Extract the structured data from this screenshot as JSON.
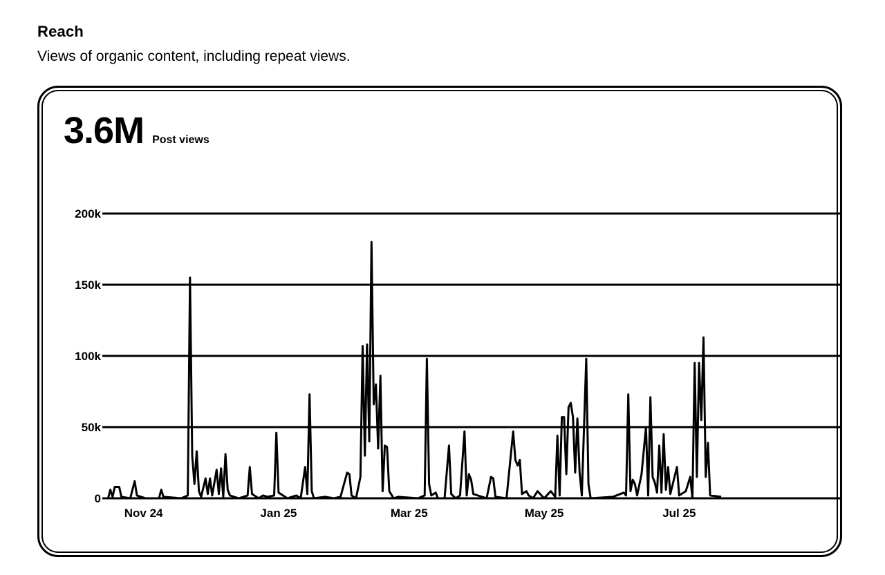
{
  "section": {
    "title": "Reach",
    "subtitle": "Views of organic content, including repeat views."
  },
  "metric": {
    "value": "3.6M",
    "label": "Post views"
  },
  "chart_data": {
    "type": "line",
    "title": "",
    "xlabel": "",
    "ylabel": "",
    "ylim": [
      0,
      200000
    ],
    "xlim": [
      "2024-10-14",
      "2025-09-12"
    ],
    "grid": true,
    "y_ticks": [
      {
        "value": 0,
        "label": "0"
      },
      {
        "value": 50000,
        "label": "50k"
      },
      {
        "value": 100000,
        "label": "100k"
      },
      {
        "value": 150000,
        "label": "150k"
      },
      {
        "value": 200000,
        "label": "200k"
      }
    ],
    "x_ticks": [
      {
        "date": "2024-11-01",
        "label": "Nov 24"
      },
      {
        "date": "2025-01-01",
        "label": "Jan 25"
      },
      {
        "date": "2025-03-01",
        "label": "Mar 25"
      },
      {
        "date": "2025-05-01",
        "label": "May 25"
      },
      {
        "date": "2025-07-01",
        "label": "Jul 25"
      }
    ],
    "series": [
      {
        "name": "",
        "points": [
          [
            "2024-10-16",
            0
          ],
          [
            "2024-10-17",
            6000
          ],
          [
            "2024-10-18",
            1000
          ],
          [
            "2024-10-19",
            8000
          ],
          [
            "2024-10-21",
            8000
          ],
          [
            "2024-10-22",
            1000
          ],
          [
            "2024-10-26",
            0
          ],
          [
            "2024-10-28",
            12000
          ],
          [
            "2024-10-29",
            2000
          ],
          [
            "2024-11-02",
            0
          ],
          [
            "2024-11-08",
            0
          ],
          [
            "2024-11-09",
            6000
          ],
          [
            "2024-11-10",
            1000
          ],
          [
            "2024-11-18",
            0
          ],
          [
            "2024-11-21",
            2000
          ],
          [
            "2024-11-22",
            155000
          ],
          [
            "2024-11-23",
            30000
          ],
          [
            "2024-11-24",
            10000
          ],
          [
            "2024-11-25",
            33000
          ],
          [
            "2024-11-26",
            5000
          ],
          [
            "2024-11-27",
            1000
          ],
          [
            "2024-11-29",
            14000
          ],
          [
            "2024-11-30",
            3000
          ],
          [
            "2024-12-01",
            14000
          ],
          [
            "2024-12-02",
            2000
          ],
          [
            "2024-12-04",
            20000
          ],
          [
            "2024-12-05",
            3000
          ],
          [
            "2024-12-06",
            21000
          ],
          [
            "2024-12-07",
            1000
          ],
          [
            "2024-12-08",
            31000
          ],
          [
            "2024-12-09",
            6000
          ],
          [
            "2024-12-10",
            2000
          ],
          [
            "2024-12-14",
            0
          ],
          [
            "2024-12-18",
            2000
          ],
          [
            "2024-12-19",
            22000
          ],
          [
            "2024-12-20",
            3000
          ],
          [
            "2024-12-23",
            0
          ],
          [
            "2024-12-25",
            2000
          ],
          [
            "2024-12-27",
            1000
          ],
          [
            "2024-12-30",
            2000
          ],
          [
            "2024-12-31",
            46000
          ],
          [
            "2025-01-01",
            4000
          ],
          [
            "2025-01-05",
            0
          ],
          [
            "2025-01-09",
            2000
          ],
          [
            "2025-01-11",
            0
          ],
          [
            "2025-01-13",
            22000
          ],
          [
            "2025-01-14",
            3000
          ],
          [
            "2025-01-15",
            73000
          ],
          [
            "2025-01-16",
            5000
          ],
          [
            "2025-01-17",
            0
          ],
          [
            "2025-01-22",
            1000
          ],
          [
            "2025-01-26",
            0
          ],
          [
            "2025-01-29",
            1000
          ],
          [
            "2025-02-01",
            18000
          ],
          [
            "2025-02-02",
            17000
          ],
          [
            "2025-02-03",
            2000
          ],
          [
            "2025-02-05",
            0
          ],
          [
            "2025-02-07",
            15000
          ],
          [
            "2025-02-08",
            107000
          ],
          [
            "2025-02-09",
            30000
          ],
          [
            "2025-02-10",
            108000
          ],
          [
            "2025-02-11",
            40000
          ],
          [
            "2025-02-12",
            180000
          ],
          [
            "2025-02-13",
            66000
          ],
          [
            "2025-02-14",
            80000
          ],
          [
            "2025-02-15",
            35000
          ],
          [
            "2025-02-16",
            86000
          ],
          [
            "2025-02-17",
            5000
          ],
          [
            "2025-02-18",
            37000
          ],
          [
            "2025-02-19",
            36000
          ],
          [
            "2025-02-20",
            5000
          ],
          [
            "2025-02-22",
            0
          ],
          [
            "2025-02-24",
            1000
          ],
          [
            "2025-03-05",
            0
          ],
          [
            "2025-03-08",
            2000
          ],
          [
            "2025-03-09",
            98000
          ],
          [
            "2025-03-10",
            10000
          ],
          [
            "2025-03-11",
            2000
          ],
          [
            "2025-03-13",
            4000
          ],
          [
            "2025-03-14",
            0
          ],
          [
            "2025-03-17",
            0
          ],
          [
            "2025-03-19",
            37000
          ],
          [
            "2025-03-20",
            3000
          ],
          [
            "2025-03-22",
            0
          ],
          [
            "2025-03-24",
            2000
          ],
          [
            "2025-03-26",
            47000
          ],
          [
            "2025-03-27",
            2000
          ],
          [
            "2025-03-28",
            17000
          ],
          [
            "2025-03-29",
            13000
          ],
          [
            "2025-03-30",
            3000
          ],
          [
            "2025-04-05",
            0
          ],
          [
            "2025-04-07",
            15000
          ],
          [
            "2025-04-08",
            14000
          ],
          [
            "2025-04-09",
            1000
          ],
          [
            "2025-04-14",
            0
          ],
          [
            "2025-04-17",
            47000
          ],
          [
            "2025-04-18",
            27000
          ],
          [
            "2025-04-19",
            23000
          ],
          [
            "2025-04-20",
            27000
          ],
          [
            "2025-04-21",
            3000
          ],
          [
            "2025-04-23",
            5000
          ],
          [
            "2025-04-24",
            2000
          ],
          [
            "2025-04-26",
            0
          ],
          [
            "2025-04-28",
            5000
          ],
          [
            "2025-05-01",
            0
          ],
          [
            "2025-05-04",
            5000
          ],
          [
            "2025-05-06",
            1000
          ],
          [
            "2025-05-07",
            44000
          ],
          [
            "2025-05-08",
            2000
          ],
          [
            "2025-05-09",
            57000
          ],
          [
            "2025-05-10",
            57000
          ],
          [
            "2025-05-11",
            17000
          ],
          [
            "2025-05-12",
            64000
          ],
          [
            "2025-05-13",
            67000
          ],
          [
            "2025-05-14",
            57000
          ],
          [
            "2025-05-15",
            18000
          ],
          [
            "2025-05-16",
            56000
          ],
          [
            "2025-05-17",
            18000
          ],
          [
            "2025-05-18",
            2000
          ],
          [
            "2025-05-20",
            98000
          ],
          [
            "2025-05-21",
            10000
          ],
          [
            "2025-05-22",
            0
          ],
          [
            "2025-06-01",
            1000
          ],
          [
            "2025-06-06",
            4000
          ],
          [
            "2025-06-07",
            2000
          ],
          [
            "2025-06-08",
            73000
          ],
          [
            "2025-06-09",
            5000
          ],
          [
            "2025-06-10",
            13000
          ],
          [
            "2025-06-11",
            10000
          ],
          [
            "2025-06-12",
            2000
          ],
          [
            "2025-06-14",
            17000
          ],
          [
            "2025-06-16",
            50000
          ],
          [
            "2025-06-17",
            2000
          ],
          [
            "2025-06-18",
            71000
          ],
          [
            "2025-06-19",
            15000
          ],
          [
            "2025-06-20",
            11000
          ],
          [
            "2025-06-21",
            4000
          ],
          [
            "2025-06-22",
            37000
          ],
          [
            "2025-06-23",
            4000
          ],
          [
            "2025-06-24",
            45000
          ],
          [
            "2025-06-25",
            6000
          ],
          [
            "2025-06-26",
            22000
          ],
          [
            "2025-06-27",
            3000
          ],
          [
            "2025-06-30",
            22000
          ],
          [
            "2025-07-01",
            2000
          ],
          [
            "2025-07-04",
            5000
          ],
          [
            "2025-07-06",
            15000
          ],
          [
            "2025-07-07",
            0
          ],
          [
            "2025-07-08",
            95000
          ],
          [
            "2025-07-09",
            15000
          ],
          [
            "2025-07-10",
            95000
          ],
          [
            "2025-07-11",
            55000
          ],
          [
            "2025-07-12",
            113000
          ],
          [
            "2025-07-13",
            15000
          ],
          [
            "2025-07-14",
            39000
          ],
          [
            "2025-07-15",
            2000
          ],
          [
            "2025-07-20",
            1000
          ]
        ]
      }
    ]
  }
}
